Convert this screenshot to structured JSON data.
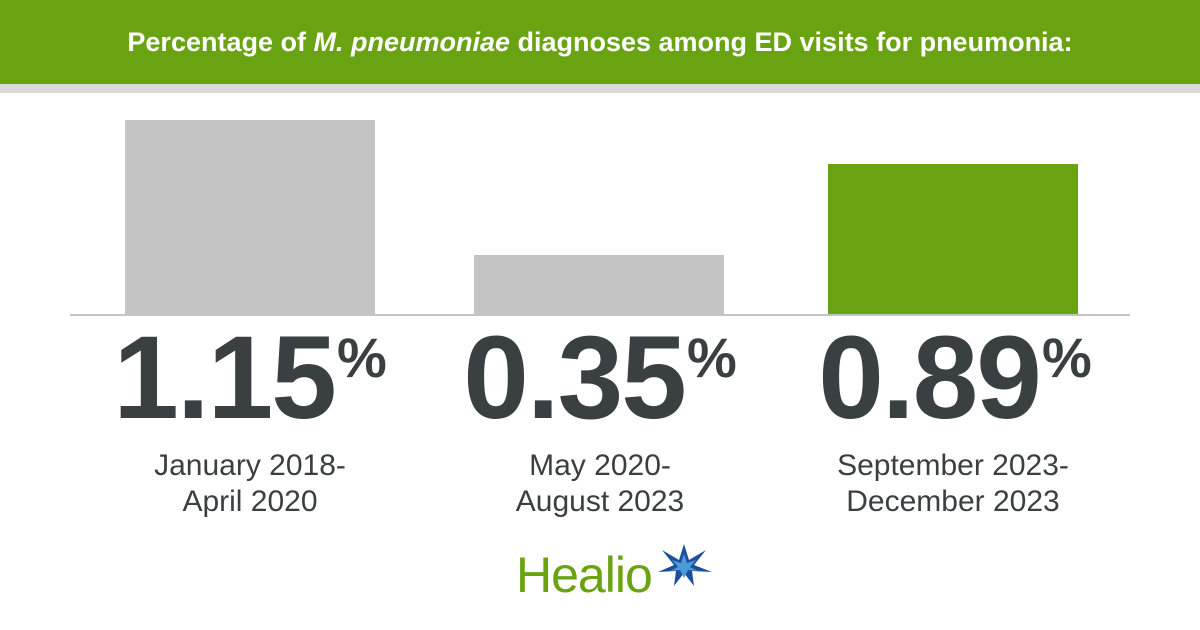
{
  "header": {
    "title_pre": "Percentage of ",
    "title_italic": "M. pneumoniae",
    "title_post": " diagnoses among ED visits for pneumonia:"
  },
  "chart_data": {
    "type": "bar",
    "title": "Percentage of M. pneumoniae diagnoses among ED visits for pneumonia:",
    "categories": [
      "January 2018-April 2020",
      "May 2020-August 2023",
      "September 2023-December 2023"
    ],
    "values": [
      1.15,
      0.35,
      0.89
    ],
    "unit": "%",
    "value_labels": [
      "1.15",
      "0.35",
      "0.89"
    ],
    "category_lines": [
      [
        "January 2018-",
        "April 2020"
      ],
      [
        "May 2020-",
        "August 2023"
      ],
      [
        "September 2023-",
        "December 2023"
      ]
    ],
    "colors": [
      "#c4c4c4",
      "#c4c4c4",
      "#6aa312"
    ],
    "ylim": [
      0,
      1.15
    ],
    "grid": false,
    "legend": "none"
  },
  "colors": {
    "accent": "#6aa312",
    "bar_gray": "#c4c4c4",
    "text_dark": "#3a3f41",
    "logo_blue": "#1b4f9c"
  },
  "logo": {
    "text": "Healio",
    "icon": "star-icon"
  }
}
